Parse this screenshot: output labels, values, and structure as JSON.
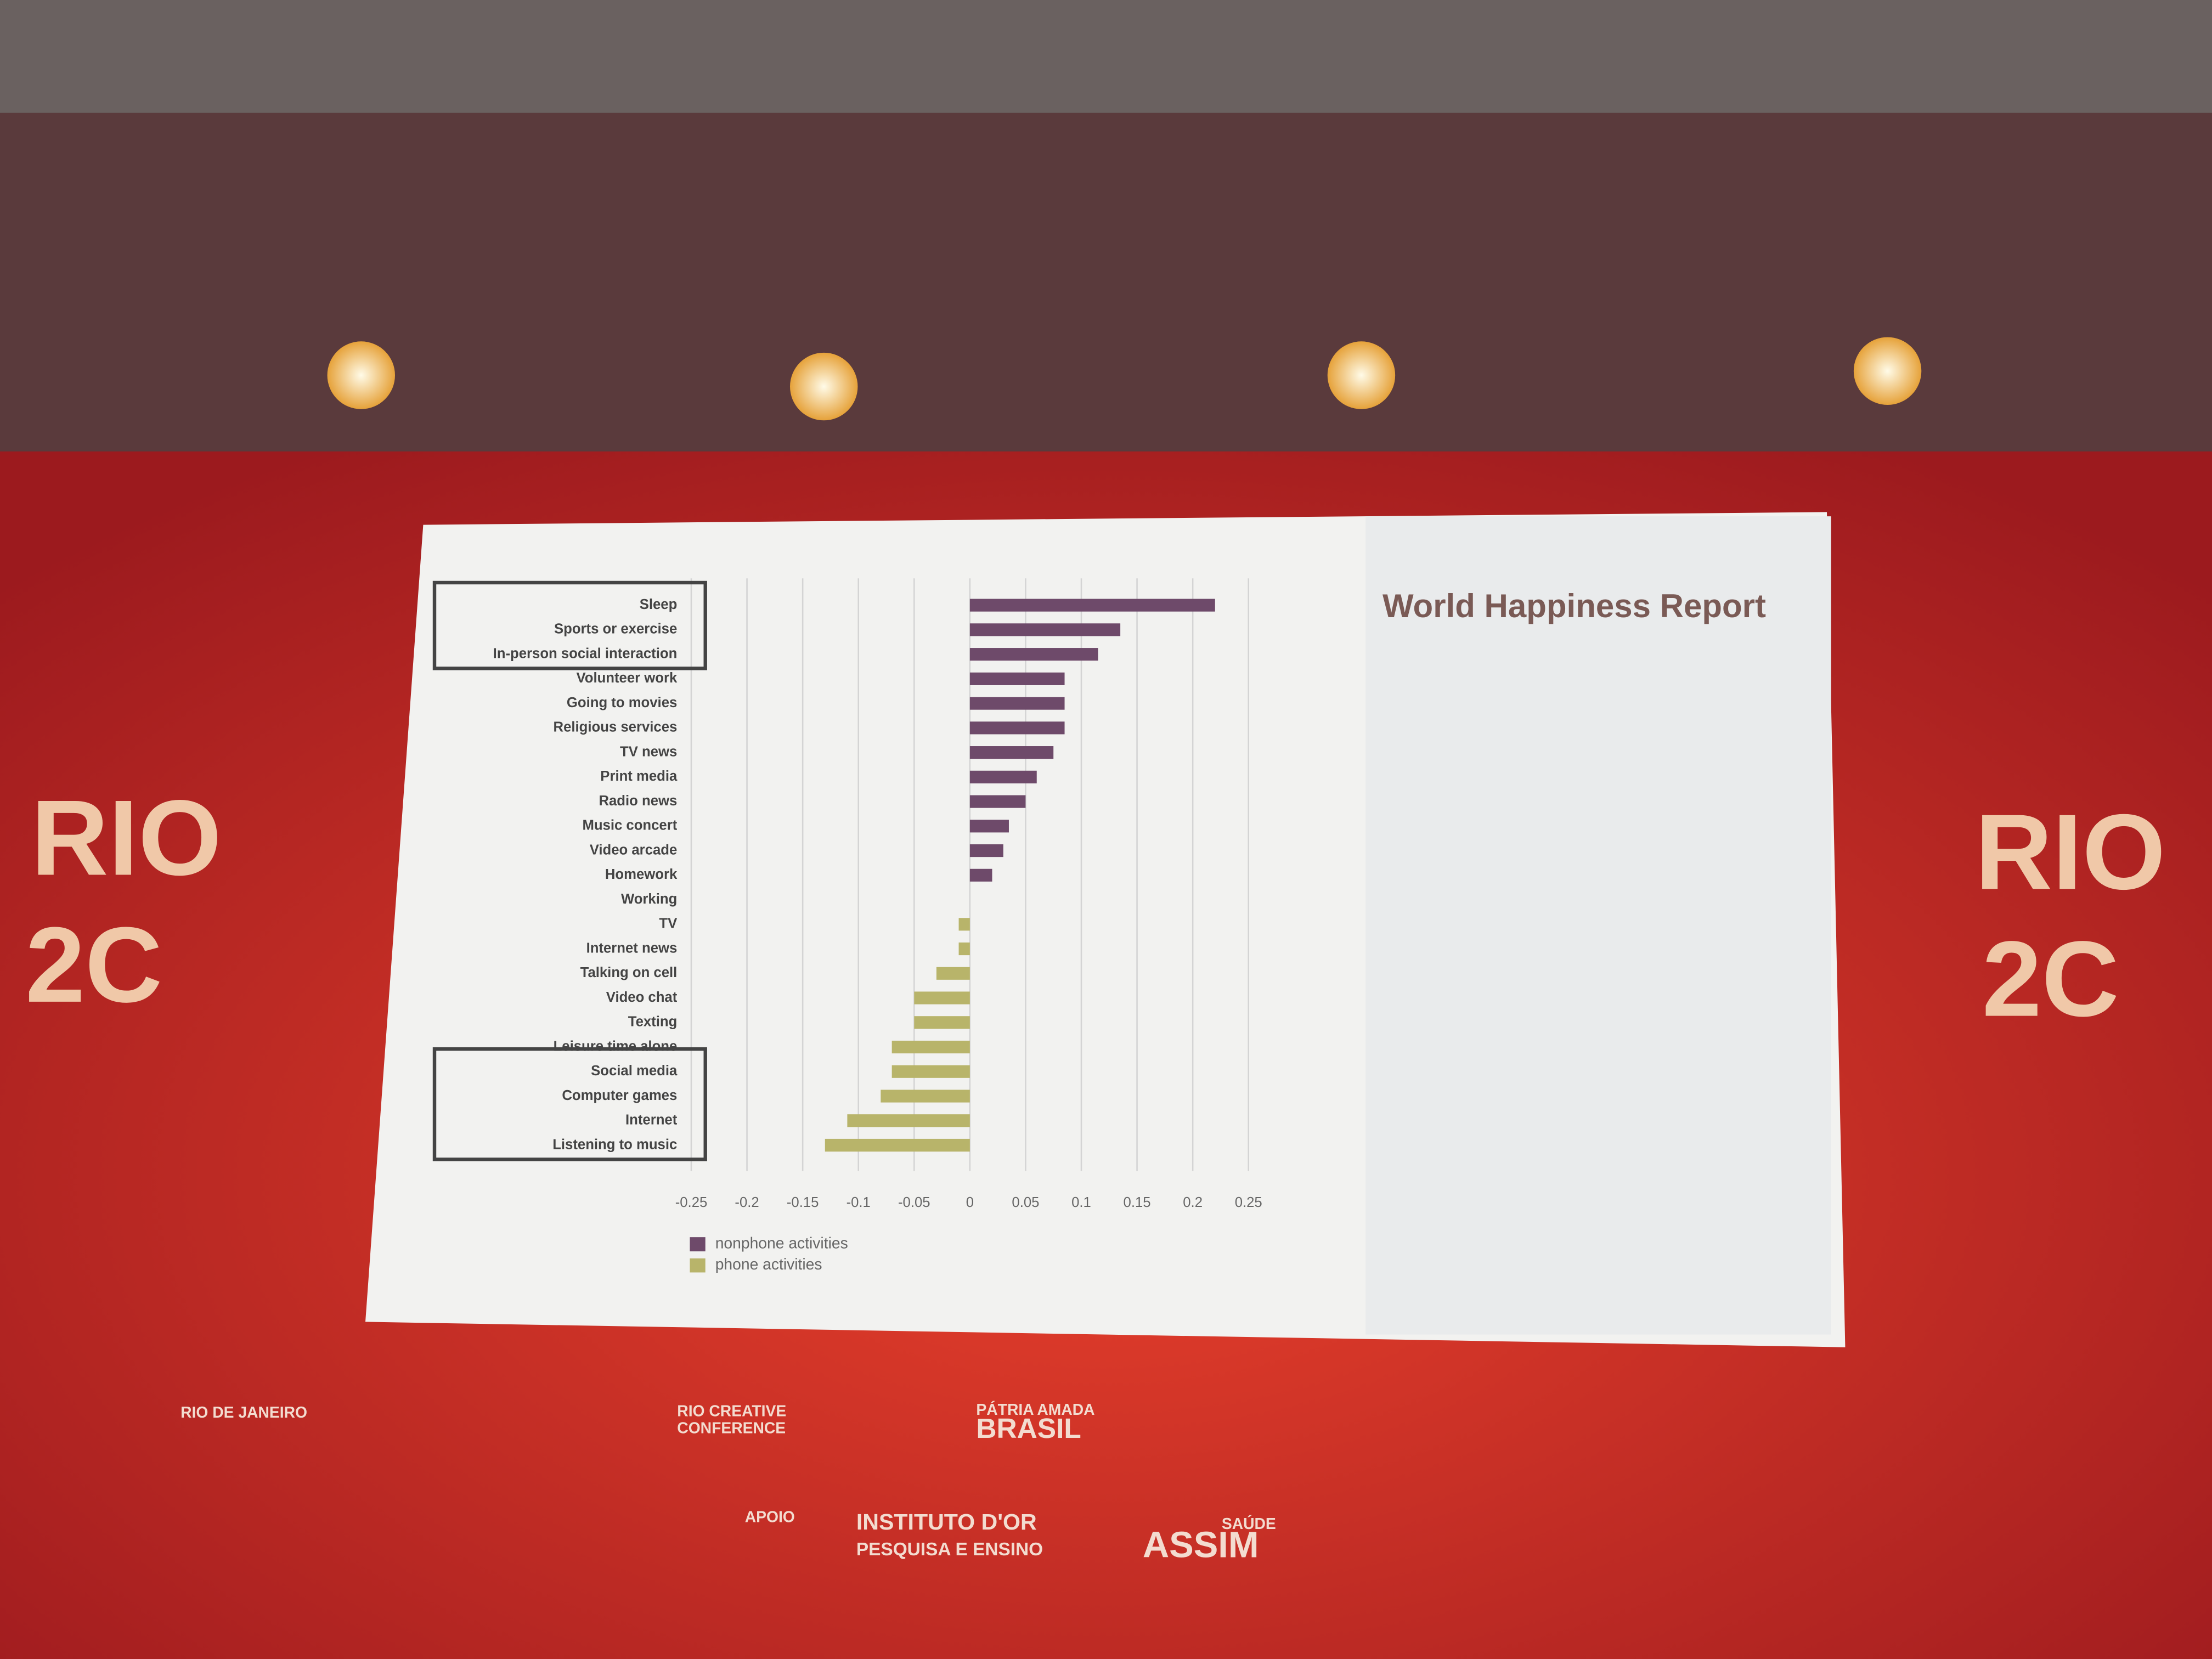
{
  "chart_data": {
    "type": "bar",
    "orientation": "horizontal",
    "title": "World Happiness Report",
    "categories": [
      "Sleep",
      "Sports or exercise",
      "In-person social interaction",
      "Volunteer work",
      "Going to movies",
      "Religious services",
      "TV news",
      "Print media",
      "Radio news",
      "Music concert",
      "Video arcade",
      "Homework",
      "Working",
      "TV",
      "Internet news",
      "Talking on cell",
      "Video chat",
      "Texting",
      "Leisure time alone",
      "Social media",
      "Computer games",
      "Internet",
      "Listening to music"
    ],
    "series": [
      {
        "name": "nonphone activities",
        "color": "#6e4a6a",
        "values": [
          0.22,
          0.135,
          0.115,
          0.085,
          0.085,
          0.085,
          0.075,
          0.06,
          0.05,
          0.035,
          0.03,
          0.02,
          0,
          null,
          null,
          null,
          null,
          null,
          null,
          null,
          null,
          null,
          null
        ]
      },
      {
        "name": "phone activities",
        "color": "#b8b46a",
        "values": [
          null,
          null,
          null,
          null,
          null,
          null,
          null,
          null,
          null,
          null,
          null,
          null,
          null,
          -0.01,
          -0.01,
          -0.03,
          -0.05,
          -0.05,
          -0.07,
          -0.07,
          -0.08,
          -0.11,
          -0.13
        ]
      }
    ],
    "xlim": [
      -0.25,
      0.25
    ],
    "xticks": [
      -0.25,
      -0.2,
      -0.15,
      -0.1,
      -0.05,
      0,
      0.05,
      0.1,
      0.15,
      0.2,
      0.25
    ],
    "grid": true,
    "legend": "bottom-left"
  },
  "backdrop": {
    "logo": [
      "RIO",
      "2C"
    ],
    "sponsors": [
      "RIO CREATIVE",
      "CONFERENCE",
      "RIO DE JANEIRO",
      "PÁTRIA AMADA",
      "BRASIL",
      "APOIO",
      "INSTITUTO D'OR",
      "PESQUISA E ENSINO",
      "SAÚDE",
      "ASSIM"
    ]
  }
}
